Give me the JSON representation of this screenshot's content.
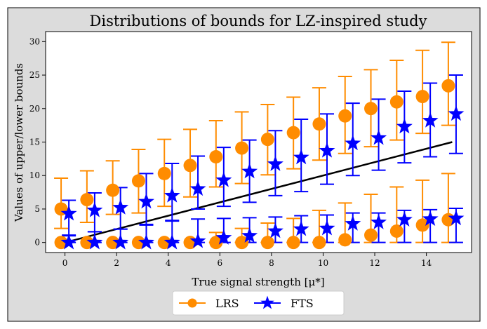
{
  "chart_data": {
    "type": "scatter",
    "title": "Distributions of bounds for LZ-inspired study",
    "xlabel": "True signal strength [μ*]",
    "ylabel": "Values of upper/lower bounds",
    "xlim": [
      -0.75,
      15.75
    ],
    "ylim": [
      -1.5,
      31.5
    ],
    "xticks": [
      0,
      2,
      4,
      6,
      8,
      10,
      12,
      14
    ],
    "yticks": [
      0,
      5,
      10,
      15,
      20,
      25,
      30
    ],
    "reference_line": {
      "x": [
        0,
        15
      ],
      "y": [
        0,
        15
      ],
      "color": "#000000"
    },
    "series": [
      {
        "name": "LRS",
        "color": "#ff8c00",
        "marker": "circle",
        "x_offset": -0.15,
        "upper": {
          "x": [
            0,
            1,
            2,
            3,
            4,
            5,
            6,
            7,
            8,
            9,
            10,
            11,
            12,
            13,
            14,
            15
          ],
          "y": [
            5.0,
            6.4,
            7.8,
            9.2,
            10.3,
            11.5,
            12.8,
            14.1,
            15.4,
            16.4,
            17.7,
            18.9,
            20.0,
            21.0,
            21.8,
            23.4
          ],
          "err_low": [
            2.1,
            3.0,
            4.2,
            4.4,
            5.4,
            6.8,
            8.3,
            8.8,
            10.1,
            11.0,
            12.3,
            13.3,
            14.3,
            15.3,
            16.3,
            17.5
          ],
          "err_high": [
            9.6,
            10.7,
            12.2,
            13.9,
            15.4,
            16.9,
            18.2,
            19.5,
            20.6,
            21.7,
            23.1,
            24.8,
            25.8,
            27.2,
            28.7,
            29.9
          ]
        },
        "lower": {
          "x": [
            0,
            1,
            2,
            3,
            4,
            5,
            6,
            7,
            8,
            9,
            10,
            11,
            12,
            13,
            14,
            15
          ],
          "y": [
            0,
            0,
            0,
            0,
            0,
            0,
            0,
            0,
            0,
            0,
            0,
            0.4,
            1.1,
            1.7,
            2.6,
            3.4
          ],
          "err_low": [
            0,
            0,
            0,
            0,
            0,
            0,
            0,
            0,
            0,
            0,
            0,
            0,
            0,
            0,
            0,
            0
          ],
          "err_high": [
            0,
            0,
            0,
            0,
            0,
            0,
            1.5,
            2.1,
            2.9,
            3.6,
            4.8,
            5.9,
            7.2,
            8.3,
            9.3,
            10.3
          ]
        }
      },
      {
        "name": "FTS",
        "color": "#0000ff",
        "marker": "star",
        "x_offset": 0.15,
        "upper": {
          "x": [
            0,
            1,
            2,
            3,
            4,
            5,
            6,
            7,
            8,
            9,
            10,
            11,
            12,
            13,
            14,
            15
          ],
          "y": [
            4.3,
            4.8,
            5.2,
            6.1,
            7.0,
            8.0,
            9.3,
            10.6,
            11.7,
            12.7,
            13.7,
            14.8,
            15.6,
            17.3,
            18.2,
            19.2
          ],
          "err_low": [
            1.0,
            1.6,
            2.0,
            2.7,
            3.2,
            5.0,
            5.4,
            6.0,
            7.0,
            7.6,
            8.7,
            10.0,
            10.8,
            11.9,
            12.8,
            13.3
          ],
          "err_high": [
            6.3,
            7.4,
            8.2,
            10.3,
            11.8,
            12.9,
            14.2,
            15.3,
            16.7,
            18.4,
            19.2,
            20.8,
            21.4,
            22.6,
            23.8,
            25.0
          ]
        },
        "lower": {
          "x": [
            0,
            1,
            2,
            3,
            4,
            5,
            6,
            7,
            8,
            9,
            10,
            11,
            12,
            13,
            14,
            15
          ],
          "y": [
            0,
            0,
            0,
            0,
            0,
            0.2,
            0.7,
            1.0,
            1.7,
            2.0,
            2.1,
            2.8,
            3.0,
            3.4,
            3.5,
            3.6
          ],
          "err_low": [
            0,
            0,
            0,
            0,
            0,
            0,
            0,
            0,
            0,
            0,
            0,
            0,
            0,
            0,
            0,
            0
          ],
          "err_high": [
            1.1,
            1.6,
            2.0,
            2.6,
            3.3,
            3.5,
            3.6,
            3.7,
            3.8,
            4.0,
            4.1,
            4.4,
            4.4,
            4.8,
            4.9,
            5.1
          ]
        }
      }
    ],
    "legend": {
      "position": "bottom-center",
      "entries": [
        "LRS",
        "FTS"
      ]
    }
  }
}
